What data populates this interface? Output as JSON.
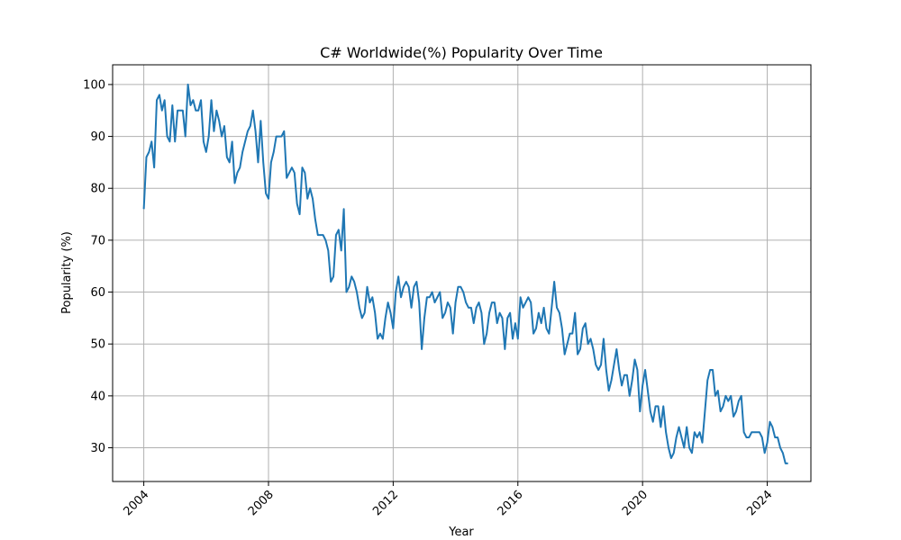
{
  "chart_data": {
    "type": "line",
    "title": "C# Worldwide(%) Popularity Over Time",
    "xlabel": "Year",
    "ylabel": "Popularity (%)",
    "xlim": [
      2003.0,
      2025.4
    ],
    "ylim": [
      23.5,
      103.8
    ],
    "xticks": [
      2004,
      2008,
      2012,
      2016,
      2020,
      2024
    ],
    "xtick_labels": [
      "2004",
      "2008",
      "2012",
      "2016",
      "2020",
      "2024"
    ],
    "yticks": [
      30,
      40,
      50,
      60,
      70,
      80,
      90,
      100
    ],
    "ytick_labels": [
      "30",
      "40",
      "50",
      "60",
      "70",
      "80",
      "90",
      "100"
    ],
    "grid": true,
    "color": "#1f77b4",
    "series": [
      {
        "x_start": "2004-01",
        "frequency": "monthly",
        "values": [
          76,
          86,
          87,
          89,
          84,
          97,
          98,
          95,
          97,
          90,
          89,
          96,
          89,
          95,
          95,
          95,
          90,
          100,
          96,
          97,
          95,
          95,
          97,
          89,
          87,
          90,
          97,
          91,
          95,
          93,
          90,
          92,
          86,
          85,
          89,
          81,
          83,
          84,
          87,
          89,
          91,
          92,
          95,
          91,
          85,
          93,
          85,
          79,
          78,
          85,
          87,
          90,
          90,
          90,
          91,
          82,
          83,
          84,
          83,
          77,
          75,
          84,
          83,
          78,
          80,
          78,
          74,
          71,
          71,
          71,
          70,
          68,
          62,
          63,
          71,
          72,
          68,
          76,
          60,
          61,
          63,
          62,
          60,
          57,
          55,
          56,
          61,
          58,
          59,
          56,
          51,
          52,
          51,
          55,
          58,
          56,
          53,
          60,
          63,
          59,
          61,
          62,
          61,
          57,
          61,
          62,
          58,
          49,
          55,
          59,
          59,
          60,
          58,
          59,
          60,
          55,
          56,
          58,
          57,
          52,
          58,
          61,
          61,
          60,
          58,
          57,
          57,
          54,
          57,
          58,
          56,
          50,
          52,
          56,
          58,
          58,
          54,
          56,
          55,
          49,
          55,
          56,
          51,
          54,
          51,
          59,
          57,
          58,
          59,
          58,
          52,
          53,
          56,
          54,
          57,
          53,
          52,
          57,
          62,
          57,
          56,
          53,
          48,
          50,
          52,
          52,
          56,
          48,
          49,
          53,
          54,
          50,
          51,
          49,
          46,
          45,
          46,
          51,
          45,
          41,
          43,
          46,
          49,
          45,
          42,
          44,
          44,
          40,
          43,
          47,
          45,
          37,
          42,
          45,
          41,
          37,
          35,
          38,
          38,
          34,
          38,
          33,
          30,
          28,
          29,
          32,
          34,
          32,
          30,
          34,
          30,
          29,
          33,
          32,
          33,
          31,
          37,
          43,
          45,
          45,
          40,
          41,
          37,
          38,
          40,
          39,
          40,
          36,
          37,
          39,
          40,
          33,
          32,
          32,
          33,
          33,
          33,
          33,
          32,
          29,
          31,
          35,
          34,
          32,
          32,
          30,
          29,
          27,
          27
        ]
      }
    ]
  }
}
